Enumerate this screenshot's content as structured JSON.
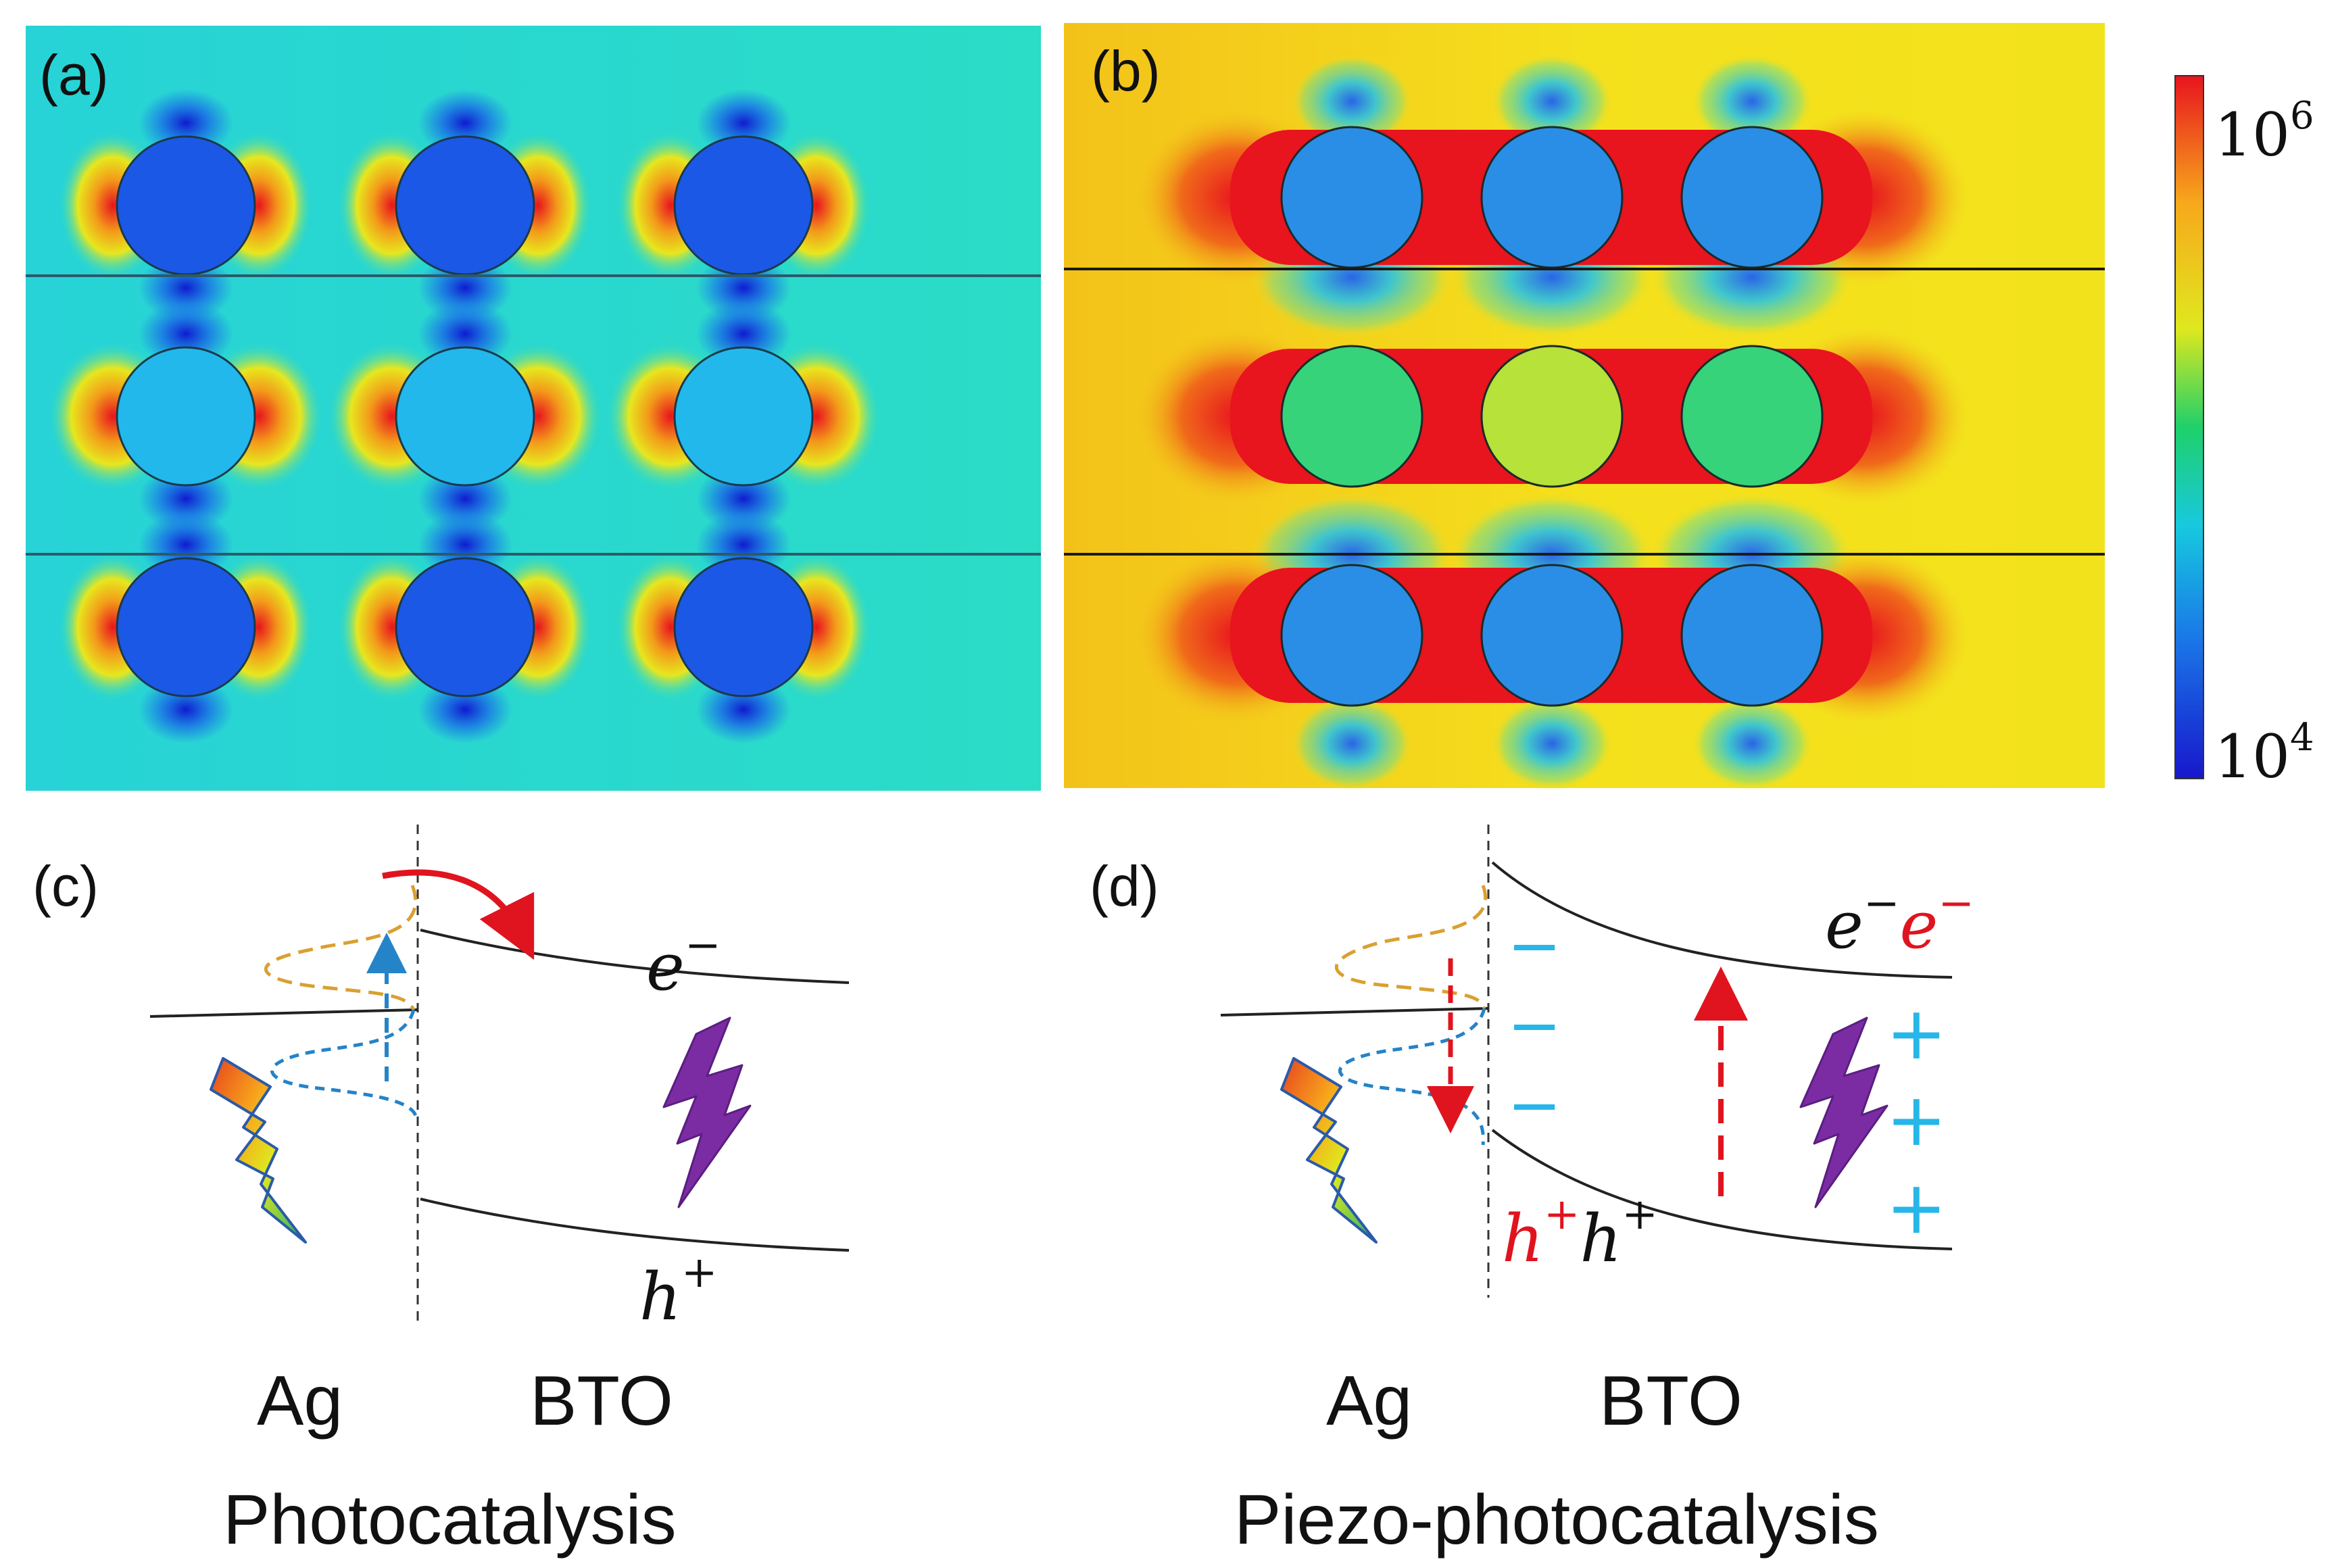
{
  "panels": {
    "a": {
      "label": "(a)"
    },
    "b": {
      "label": "(b)"
    },
    "c": {
      "label": "(c)",
      "electron": "e",
      "electron_sup": "−",
      "hole": "h",
      "hole_sup": "+",
      "metal": "Ag",
      "semiconductor": "BTO",
      "caption": "Photocatalysis"
    },
    "d": {
      "label": "(d)",
      "electron_black": "e",
      "electron_red": "e",
      "electron_sup": "−",
      "hole_red": "h",
      "hole_black": "h",
      "hole_sup": "+",
      "minus_sign": "−",
      "plus_sign": "+",
      "metal": "Ag",
      "semiconductor": "BTO",
      "caption": "Piezo-photocatalysis"
    }
  },
  "colorbar": {
    "max_base": "10",
    "max_exp": "6",
    "min_base": "10",
    "min_exp": "4",
    "colors": [
      "#e8141e",
      "#f7a81c",
      "#dfe81e",
      "#1fd06a",
      "#17c9de",
      "#1a78e8",
      "#1717cc"
    ]
  },
  "colors": {
    "red": "#e0141e",
    "cyan": "#27b6e8",
    "gold_dashed": "#d9a031",
    "blue_dashed": "#2583c8",
    "purple": "#7b2ca3"
  }
}
